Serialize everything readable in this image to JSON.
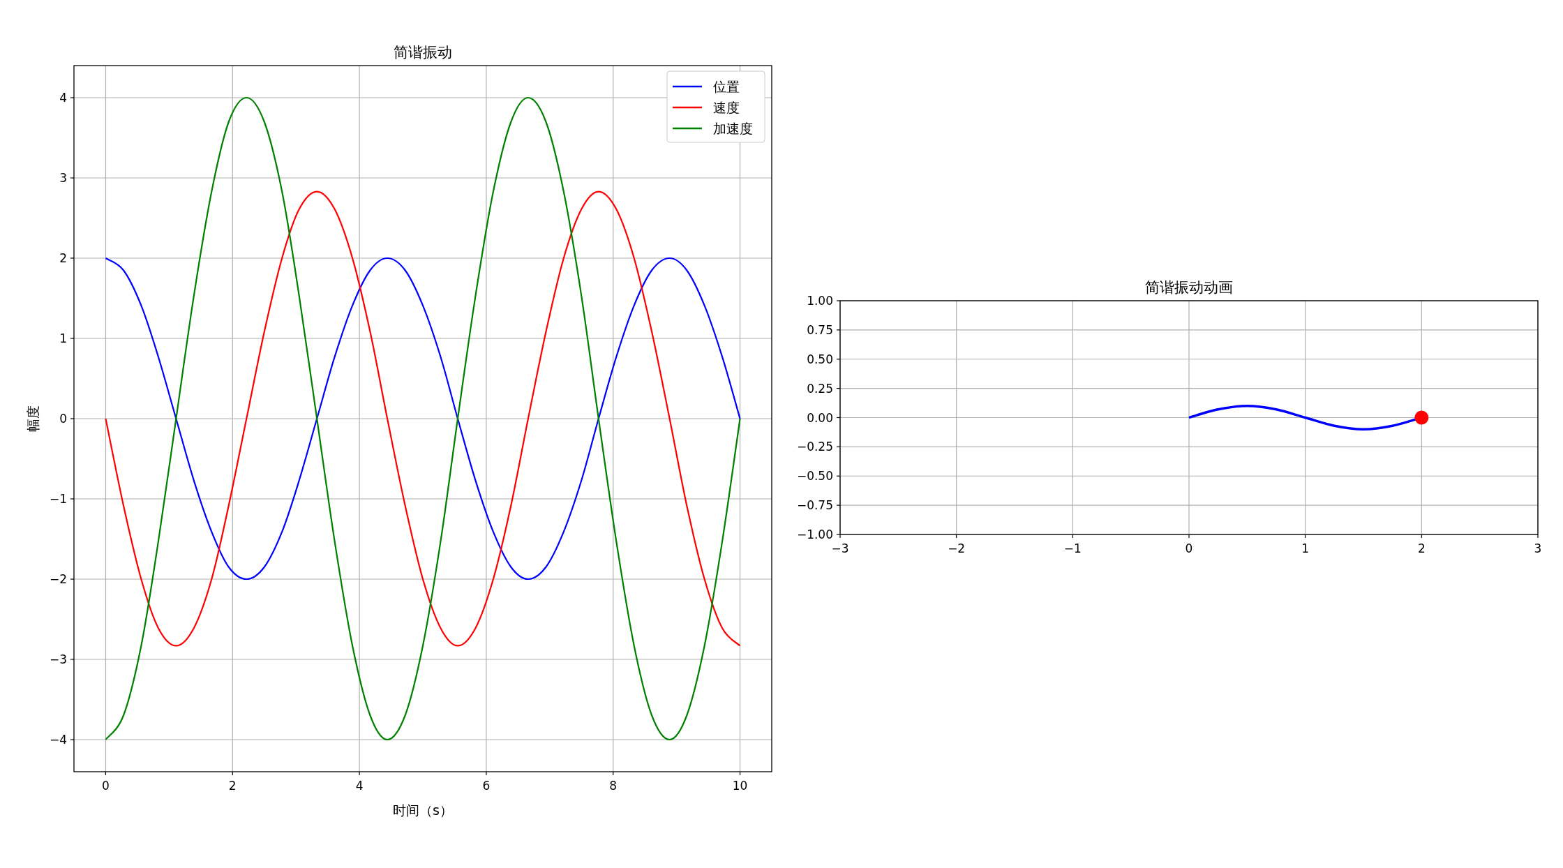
{
  "chart_data": [
    {
      "type": "line",
      "title": "简谐振动",
      "xlabel": "时间（s）",
      "ylabel": "幅度",
      "xlim": [
        -0.5,
        10.5
      ],
      "ylim": [
        -4.4,
        4.4
      ],
      "xticks": [
        0,
        2,
        4,
        6,
        8,
        10
      ],
      "yticks": [
        {
          "value": -4,
          "label": "−4"
        },
        {
          "value": -3,
          "label": "−3"
        },
        {
          "value": -2,
          "label": "−2"
        },
        {
          "value": -1,
          "label": "−1"
        },
        0,
        1,
        2,
        3,
        4
      ],
      "grid": true,
      "legend": "top right",
      "x": [
        0,
        0.28,
        0.56,
        0.83,
        1.11,
        1.39,
        1.67,
        1.94,
        2.22,
        2.5,
        2.78,
        3.05,
        3.33,
        3.61,
        3.89,
        4.17,
        4.44,
        4.72,
        5.0,
        5.28,
        5.55,
        5.83,
        6.11,
        6.39,
        6.66,
        6.94,
        7.22,
        7.5,
        7.77,
        8.05,
        8.33,
        8.61,
        8.89,
        9.16,
        9.44,
        9.72,
        10.0
      ],
      "series": [
        {
          "name": "位置",
          "color": "#0000ff",
          "values": [
            2,
            1.85,
            1.41,
            0.77,
            0,
            -0.77,
            -1.41,
            -1.85,
            -2,
            -1.85,
            -1.41,
            -0.77,
            0,
            0.77,
            1.41,
            1.85,
            2,
            1.85,
            1.41,
            0.77,
            0,
            -0.77,
            -1.41,
            -1.85,
            -2,
            -1.85,
            -1.41,
            -0.77,
            0,
            0.77,
            1.41,
            1.85,
            2,
            1.85,
            1.41,
            0.77,
            0
          ]
        },
        {
          "name": "速度",
          "color": "#ff0000",
          "values": [
            0,
            -1.08,
            -2,
            -2.61,
            -2.83,
            -2.61,
            -2,
            -1.08,
            0,
            1.08,
            2,
            2.61,
            2.83,
            2.61,
            2,
            1.08,
            0,
            -1.08,
            -2,
            -2.61,
            -2.83,
            -2.61,
            -2,
            -1.08,
            0,
            1.08,
            2,
            2.61,
            2.83,
            2.61,
            2,
            1.08,
            0,
            -1.08,
            -2,
            -2.61,
            -2.83
          ]
        },
        {
          "name": "加速度",
          "color": "#008000",
          "values": [
            -4,
            -3.7,
            -2.83,
            -1.53,
            0,
            1.53,
            2.83,
            3.7,
            4,
            3.7,
            2.83,
            1.53,
            0,
            -1.53,
            -2.83,
            -3.7,
            -4,
            -3.7,
            -2.83,
            -1.53,
            0,
            1.53,
            2.83,
            3.7,
            4,
            3.7,
            2.83,
            1.53,
            0,
            -1.53,
            -2.83,
            -3.7,
            -4,
            -3.7,
            -2.83,
            -1.53,
            0
          ]
        }
      ]
    },
    {
      "type": "line",
      "title": "简谐振动动画",
      "xlim": [
        -3,
        3
      ],
      "ylim": [
        -1,
        1
      ],
      "xticks": [
        {
          "value": -3,
          "label": "−3"
        },
        {
          "value": -2,
          "label": "−2"
        },
        {
          "value": -1,
          "label": "−1"
        },
        0,
        1,
        2,
        3
      ],
      "yticks": [
        {
          "value": -1,
          "label": "−1.00"
        },
        {
          "value": -0.75,
          "label": "−0.75"
        },
        {
          "value": -0.5,
          "label": "−0.50"
        },
        {
          "value": -0.25,
          "label": "−0.25"
        },
        {
          "value": 0,
          "label": "0.00"
        },
        0.25,
        {
          "value": 0.5,
          "label": "0.50"
        },
        0.75,
        {
          "value": 1,
          "label": "1.00"
        }
      ],
      "grid": true,
      "series": [
        {
          "color": "#0000ff",
          "x": [
            0,
            0.25,
            0.5,
            0.75,
            1,
            1.25,
            1.5,
            1.75,
            2
          ],
          "values": [
            0,
            0.07,
            0.1,
            0.07,
            0,
            -0.07,
            -0.1,
            -0.07,
            0
          ]
        },
        {
          "type": "scatter",
          "color": "#ff0000",
          "marker": "circle",
          "x": [
            2
          ],
          "values": [
            0
          ]
        }
      ]
    }
  ]
}
